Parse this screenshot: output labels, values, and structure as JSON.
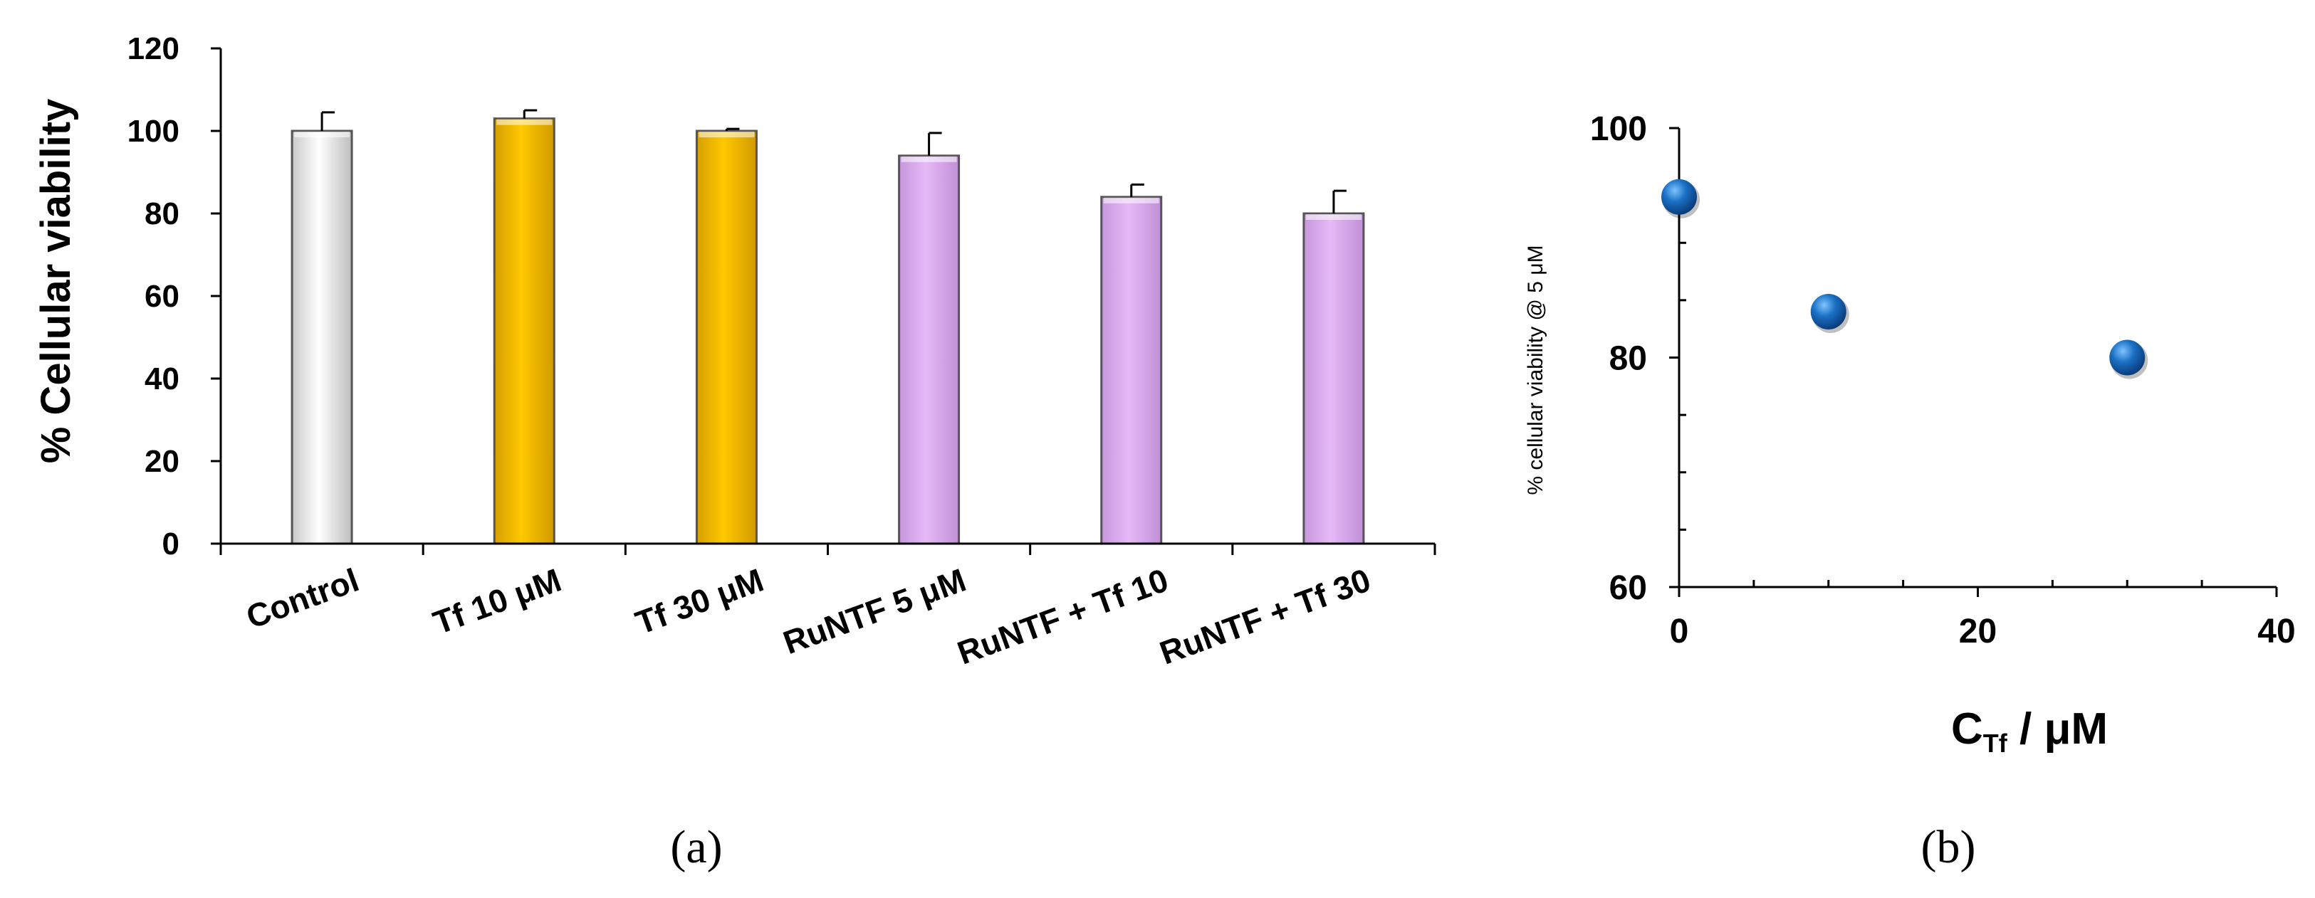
{
  "panels": {
    "a": "(a)",
    "b": "(b)"
  },
  "chart_data": [
    {
      "type": "bar",
      "ylabel": "% Cellular viability",
      "ylim": [
        0,
        120
      ],
      "yticks": [
        0,
        20,
        40,
        60,
        80,
        100,
        120
      ],
      "categories": [
        "Control",
        "Tf 10 μM",
        "Tf 30 μM",
        "RuNTF 5 μM",
        "RuNTF + Tf 10",
        "RuNTF + Tf 30"
      ],
      "values": [
        100,
        103,
        100,
        94,
        84,
        80
      ],
      "errors": [
        4.5,
        2,
        0.5,
        5.5,
        3,
        5.5
      ],
      "colors": [
        "#f2f2f2",
        "#f7c000",
        "#f7c000",
        "#deaff2",
        "#deaff2",
        "#deaff2"
      ]
    },
    {
      "type": "scatter",
      "xlabel_main": "C",
      "xlabel_sub": "Tf",
      "xlabel_rest": " / μM",
      "ylabel": "% cellular  viability @ 5 μM",
      "xlim": [
        0,
        40
      ],
      "ylim": [
        60,
        100
      ],
      "xticks": [
        0,
        20,
        40
      ],
      "yticks": [
        60,
        80,
        100
      ],
      "x": [
        0,
        10,
        30
      ],
      "y": [
        94,
        84,
        80
      ],
      "marker_color": "#1a70c4"
    }
  ]
}
